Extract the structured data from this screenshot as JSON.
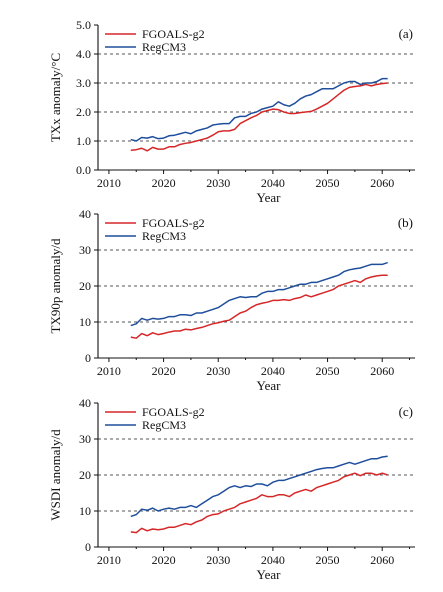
{
  "chart_data": [
    {
      "type": "line",
      "panel_label": "(a)",
      "ylabel": "TXx anomaly/°C",
      "xlabel": "Year",
      "xlim": [
        2008,
        2066
      ],
      "ylim": [
        0.0,
        5.0
      ],
      "x_ticks": [
        2010,
        2020,
        2030,
        2040,
        2050,
        2060
      ],
      "y_ticks": [
        0.0,
        1.0,
        2.0,
        3.0,
        4.0,
        5.0
      ],
      "y_tick_labels": [
        "0.0",
        "1.0",
        "2.0",
        "3.0",
        "4.0",
        "5.0"
      ],
      "grid": "dashed horizontal lines at 1.0, 2.0, 3.0, 4.0",
      "legend_position": "top-left",
      "x": [
        2014,
        2015,
        2016,
        2017,
        2018,
        2019,
        2020,
        2021,
        2022,
        2023,
        2024,
        2025,
        2026,
        2027,
        2028,
        2029,
        2030,
        2031,
        2032,
        2033,
        2034,
        2035,
        2036,
        2037,
        2038,
        2039,
        2040,
        2041,
        2042,
        2043,
        2044,
        2045,
        2046,
        2047,
        2048,
        2049,
        2050,
        2051,
        2052,
        2053,
        2054,
        2055,
        2056,
        2057,
        2058,
        2059,
        2060,
        2061
      ],
      "series": [
        {
          "name": "FGOALS-g2",
          "color": "#d62728",
          "values": [
            0.68,
            0.7,
            0.75,
            0.66,
            0.78,
            0.72,
            0.72,
            0.8,
            0.8,
            0.88,
            0.92,
            0.95,
            1.0,
            1.05,
            1.1,
            1.2,
            1.32,
            1.35,
            1.35,
            1.4,
            1.6,
            1.7,
            1.8,
            1.88,
            2.0,
            2.05,
            2.1,
            2.08,
            2.0,
            1.95,
            1.95,
            1.98,
            2.0,
            2.02,
            2.1,
            2.2,
            2.3,
            2.45,
            2.6,
            2.75,
            2.85,
            2.88,
            2.9,
            2.95,
            2.9,
            2.95,
            2.98,
            3.0
          ]
        },
        {
          "name": "RegCM3",
          "color": "#1f4e9c",
          "values": [
            1.05,
            1.0,
            1.12,
            1.1,
            1.15,
            1.08,
            1.1,
            1.18,
            1.2,
            1.25,
            1.3,
            1.25,
            1.35,
            1.4,
            1.45,
            1.55,
            1.58,
            1.6,
            1.6,
            1.8,
            1.85,
            1.85,
            1.95,
            2.0,
            2.1,
            2.15,
            2.2,
            2.35,
            2.25,
            2.2,
            2.3,
            2.45,
            2.55,
            2.6,
            2.7,
            2.8,
            2.8,
            2.8,
            2.9,
            3.0,
            3.05,
            3.05,
            2.95,
            3.0,
            3.0,
            3.05,
            3.15,
            3.15
          ]
        }
      ]
    },
    {
      "type": "line",
      "panel_label": "(b)",
      "ylabel": "TX90p anomaly/d",
      "xlabel": "Year",
      "xlim": [
        2008,
        2066
      ],
      "ylim": [
        0,
        40
      ],
      "x_ticks": [
        2010,
        2020,
        2030,
        2040,
        2050,
        2060
      ],
      "y_ticks": [
        0,
        10,
        20,
        30,
        40
      ],
      "y_tick_labels": [
        "0",
        "10",
        "20",
        "30",
        "40"
      ],
      "grid": "dashed horizontal lines at 10, 20, 30",
      "legend_position": "top-left",
      "x": [
        2014,
        2015,
        2016,
        2017,
        2018,
        2019,
        2020,
        2021,
        2022,
        2023,
        2024,
        2025,
        2026,
        2027,
        2028,
        2029,
        2030,
        2031,
        2032,
        2033,
        2034,
        2035,
        2036,
        2037,
        2038,
        2039,
        2040,
        2041,
        2042,
        2043,
        2044,
        2045,
        2046,
        2047,
        2048,
        2049,
        2050,
        2051,
        2052,
        2053,
        2054,
        2055,
        2056,
        2057,
        2058,
        2059,
        2060,
        2061
      ],
      "series": [
        {
          "name": "FGOALS-g2",
          "color": "#d62728",
          "values": [
            5.8,
            5.5,
            6.8,
            6.2,
            7.0,
            6.5,
            6.8,
            7.2,
            7.5,
            7.5,
            8.0,
            7.8,
            8.2,
            8.5,
            9.0,
            9.5,
            9.8,
            10.2,
            10.5,
            11.5,
            12.5,
            13.0,
            14.0,
            14.8,
            15.2,
            15.5,
            16.0,
            16.0,
            16.2,
            16.0,
            16.5,
            16.8,
            17.5,
            17.0,
            17.5,
            18.0,
            18.5,
            19.0,
            20.0,
            20.5,
            21.0,
            21.5,
            21.0,
            22.0,
            22.5,
            22.8,
            23.0,
            23.0
          ]
        },
        {
          "name": "RegCM3",
          "color": "#1f4e9c",
          "values": [
            9.0,
            9.5,
            11.0,
            10.5,
            11.0,
            10.8,
            11.0,
            11.5,
            11.5,
            12.0,
            12.0,
            11.8,
            12.5,
            12.5,
            13.0,
            13.5,
            14.0,
            15.0,
            16.0,
            16.5,
            17.0,
            16.8,
            17.0,
            17.0,
            18.0,
            18.5,
            18.5,
            19.0,
            19.0,
            19.5,
            20.0,
            20.5,
            20.5,
            21.0,
            21.0,
            21.5,
            22.0,
            22.5,
            23.0,
            24.0,
            24.5,
            24.8,
            25.0,
            25.5,
            26.0,
            26.0,
            26.0,
            26.5
          ]
        }
      ]
    },
    {
      "type": "line",
      "panel_label": "(c)",
      "ylabel": "WSDI anomaly/d",
      "xlabel": "Year",
      "xlim": [
        2008,
        2066
      ],
      "ylim": [
        0,
        40
      ],
      "x_ticks": [
        2010,
        2020,
        2030,
        2040,
        2050,
        2060
      ],
      "y_ticks": [
        0,
        10,
        20,
        30,
        40
      ],
      "y_tick_labels": [
        "0",
        "10",
        "20",
        "30",
        "40"
      ],
      "grid": "dashed horizontal lines at 10, 20, 30",
      "legend_position": "top-left",
      "x": [
        2014,
        2015,
        2016,
        2017,
        2018,
        2019,
        2020,
        2021,
        2022,
        2023,
        2024,
        2025,
        2026,
        2027,
        2028,
        2029,
        2030,
        2031,
        2032,
        2033,
        2034,
        2035,
        2036,
        2037,
        2038,
        2039,
        2040,
        2041,
        2042,
        2043,
        2044,
        2045,
        2046,
        2047,
        2048,
        2049,
        2050,
        2051,
        2052,
        2053,
        2054,
        2055,
        2056,
        2057,
        2058,
        2059,
        2060,
        2061
      ],
      "series": [
        {
          "name": "FGOALS-g2",
          "color": "#d62728",
          "values": [
            4.2,
            4.0,
            5.2,
            4.5,
            5.0,
            4.8,
            5.0,
            5.5,
            5.5,
            6.0,
            6.5,
            6.2,
            7.0,
            7.5,
            8.5,
            9.0,
            9.2,
            10.0,
            10.5,
            11.0,
            12.0,
            12.5,
            13.0,
            13.5,
            14.5,
            14.0,
            14.0,
            14.5,
            14.5,
            14.0,
            15.0,
            15.5,
            16.0,
            15.5,
            16.5,
            17.0,
            17.5,
            18.0,
            18.5,
            19.5,
            20.0,
            20.5,
            19.8,
            20.5,
            20.5,
            20.0,
            20.5,
            20.0
          ]
        },
        {
          "name": "RegCM3",
          "color": "#1f4e9c",
          "values": [
            8.5,
            9.0,
            10.5,
            10.2,
            10.8,
            10.0,
            10.5,
            10.8,
            10.5,
            11.0,
            11.0,
            11.5,
            11.0,
            12.0,
            13.0,
            14.0,
            14.5,
            15.5,
            16.5,
            17.0,
            16.5,
            17.0,
            16.8,
            17.5,
            17.5,
            17.0,
            18.0,
            18.5,
            18.5,
            19.0,
            19.5,
            20.0,
            20.5,
            21.0,
            21.5,
            21.8,
            22.0,
            22.0,
            22.5,
            23.0,
            23.5,
            23.0,
            23.5,
            24.0,
            24.5,
            24.5,
            25.0,
            25.2
          ]
        }
      ]
    }
  ]
}
